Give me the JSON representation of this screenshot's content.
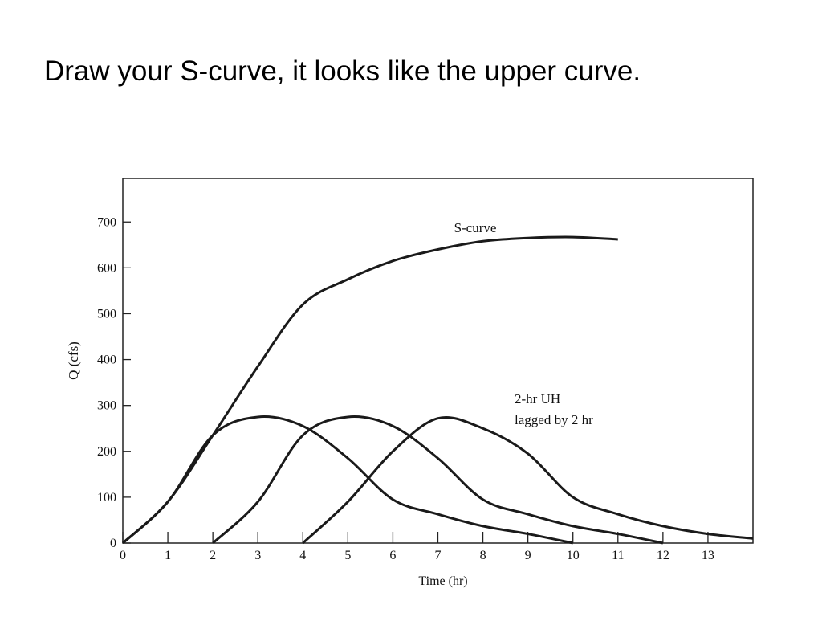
{
  "chart_data": {
    "type": "line",
    "title": "Draw your S-curve, it looks like the upper curve.",
    "xlabel": "Time (hr)",
    "ylabel": "Q (cfs)",
    "annotations": [
      "S-curve",
      "2-hr UH",
      "lagged by 2 hr"
    ],
    "xlim": [
      0,
      14
    ],
    "xticks": [
      0,
      1,
      2,
      3,
      4,
      5,
      6,
      7,
      8,
      9,
      10,
      11,
      12,
      13
    ],
    "ylim": [
      0,
      795
    ],
    "yticks": [
      0,
      100,
      200,
      300,
      400,
      500,
      600,
      700
    ],
    "grid": false,
    "series": [
      {
        "color": "#1a1a1a",
        "x": [
          0,
          1,
          2,
          3,
          4,
          5,
          6,
          7,
          8,
          9,
          10,
          11
        ],
        "values": [
          0,
          90,
          235,
          385,
          520,
          575,
          615,
          640,
          658,
          665,
          667,
          662
        ]
      },
      {
        "color": "#1a1a1a",
        "x": [
          0,
          1,
          2,
          3,
          4,
          5,
          6,
          7,
          8,
          9,
          10
        ],
        "values": [
          0,
          90,
          235,
          275,
          255,
          185,
          95,
          63,
          37,
          20,
          0
        ]
      },
      {
        "color": "#1a1a1a",
        "x": [
          2,
          3,
          4,
          5,
          6,
          7,
          8,
          9,
          10,
          11,
          12
        ],
        "values": [
          0,
          90,
          235,
          275,
          255,
          185,
          95,
          63,
          37,
          20,
          0
        ]
      },
      {
        "color": "#1a1a1a",
        "x": [
          4,
          5,
          6,
          7,
          8,
          9,
          10,
          11,
          12,
          13,
          14
        ],
        "values": [
          0,
          90,
          200,
          272,
          250,
          195,
          100,
          63,
          37,
          20,
          10
        ]
      }
    ]
  }
}
